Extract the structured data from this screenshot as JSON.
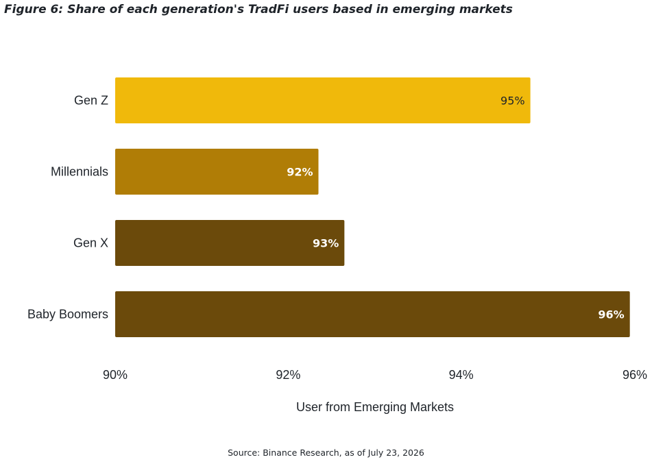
{
  "figure_title": "Figure 6: Share of each generation's TradFi users based in emerging markets",
  "source": "Source: Binance Research, as of July 23, 2026",
  "colors": {
    "gen_z": "#F0B90B",
    "millennials": "#B07D06",
    "gen_x": "#6B4A0B",
    "baby_boomers": "#6B4A0B",
    "label_dark": "#1e2329",
    "label_light": "#ffffff"
  },
  "chart_data": {
    "type": "bar",
    "orientation": "horizontal",
    "categories": [
      "Gen Z",
      "Millennials",
      "Gen X",
      "Baby Boomers"
    ],
    "values": [
      94.8,
      92.35,
      92.65,
      95.95
    ],
    "data_labels": [
      "95%",
      "92%",
      "93%",
      "96%"
    ],
    "xlabel": "User from Emerging Markets",
    "xlim": [
      90,
      96
    ],
    "xticks": [
      90,
      92,
      94,
      96
    ],
    "xtick_labels": [
      "90%",
      "92%",
      "94%",
      "96%"
    ],
    "grid": false,
    "legend": "none"
  }
}
